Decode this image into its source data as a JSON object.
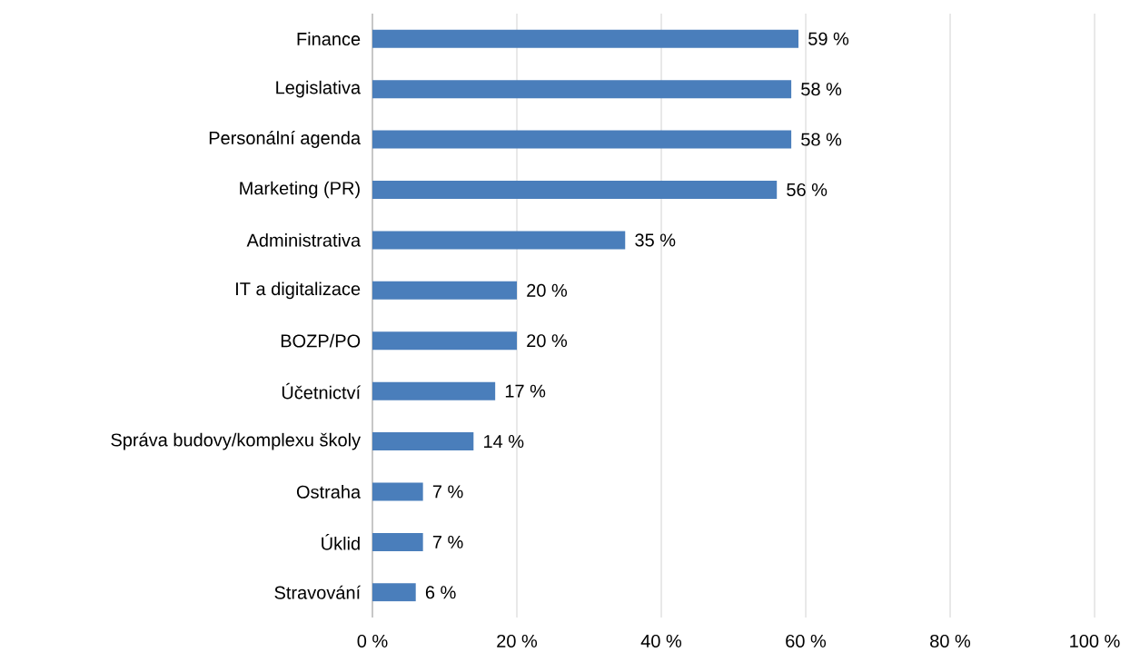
{
  "chart_data": {
    "type": "bar",
    "orientation": "horizontal",
    "categories": [
      "Finance",
      "Legislativa",
      "Personální agenda",
      "Marketing (PR)",
      "Administrativa",
      "IT a digitalizace",
      "BOZP/PO",
      "Účetnictví",
      "Správa budovy/komplexu školy",
      "Ostraha",
      "Úklid",
      "Stravování"
    ],
    "values": [
      59,
      58,
      58,
      56,
      35,
      20,
      20,
      17,
      14,
      7,
      7,
      6
    ],
    "value_labels": [
      "59 %",
      "58 %",
      "58 %",
      "56 %",
      "35 %",
      "20 %",
      "20 %",
      "17 %",
      "14 %",
      "7 %",
      "7 %",
      "6 %"
    ],
    "color": "#4a7ebb",
    "xlim": [
      0,
      100
    ],
    "xticks": [
      {
        "value": 0,
        "label": "0 %"
      },
      {
        "value": 20,
        "label": "20 %"
      },
      {
        "value": 40,
        "label": "40 %"
      },
      {
        "value": 60,
        "label": "60 %"
      },
      {
        "value": 80,
        "label": "80 %"
      },
      {
        "value": 100,
        "label": "100 %"
      }
    ],
    "grid": "x"
  }
}
